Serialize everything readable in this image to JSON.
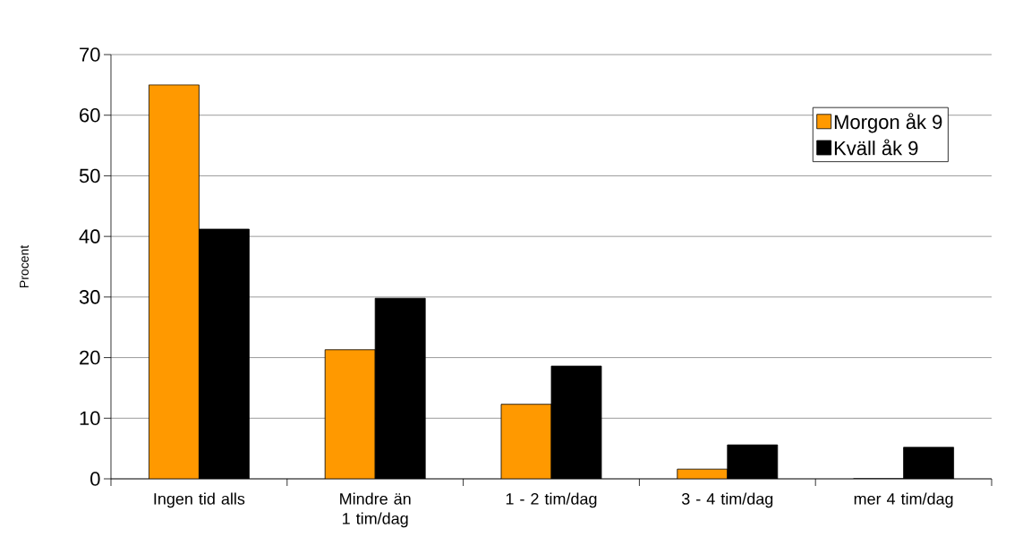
{
  "chart_data": {
    "type": "bar",
    "ylabel": "Procent",
    "categories": [
      "Ingen tid alls",
      "Mindre än 1 tim/dag",
      "1 - 2 tim/dag",
      "3 - 4 tim/dag",
      "mer 4 tim/dag"
    ],
    "series": [
      {
        "name": "Morgon åk 9",
        "color": "#ff9900",
        "values": [
          65.0,
          21.3,
          12.3,
          1.6,
          0
        ]
      },
      {
        "name": "Kväll åk 9",
        "color": "#000000",
        "values": [
          41.2,
          29.8,
          18.6,
          5.6,
          5.2
        ]
      }
    ],
    "ylim": [
      0,
      70
    ],
    "yticks": [
      0,
      10,
      20,
      30,
      40,
      50,
      60,
      70
    ],
    "grid": "y",
    "legend": "top right"
  }
}
